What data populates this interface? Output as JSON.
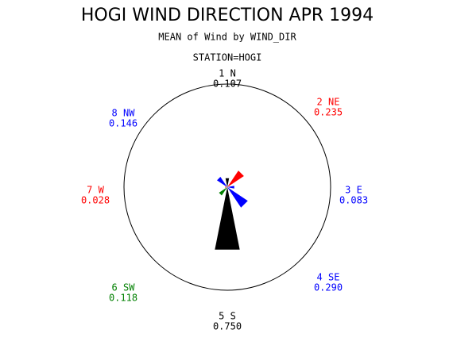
{
  "chart_data": {
    "type": "star",
    "title": "HOGI WIND DIRECTION APR 1994",
    "subtitle": "MEAN of Wind by WIND_DIR",
    "group_label": "STATION=HOGI",
    "categories": [
      "1 N",
      "2 NE",
      "3 E",
      "4 SE",
      "5 S",
      "6 SW",
      "7 W",
      "8 NW"
    ],
    "values": [
      0.107,
      0.235,
      0.083,
      0.29,
      0.75,
      0.118,
      0.028,
      0.146
    ],
    "value_labels": [
      "0.107",
      "0.235",
      "0.083",
      "0.290",
      "0.750",
      "0.118",
      "0.028",
      "0.146"
    ],
    "colors": [
      "#000000",
      "#ff0000",
      "#0000ff",
      "#0000ff",
      "#000000",
      "#008000",
      "#ff0000",
      "#0000ff"
    ]
  }
}
